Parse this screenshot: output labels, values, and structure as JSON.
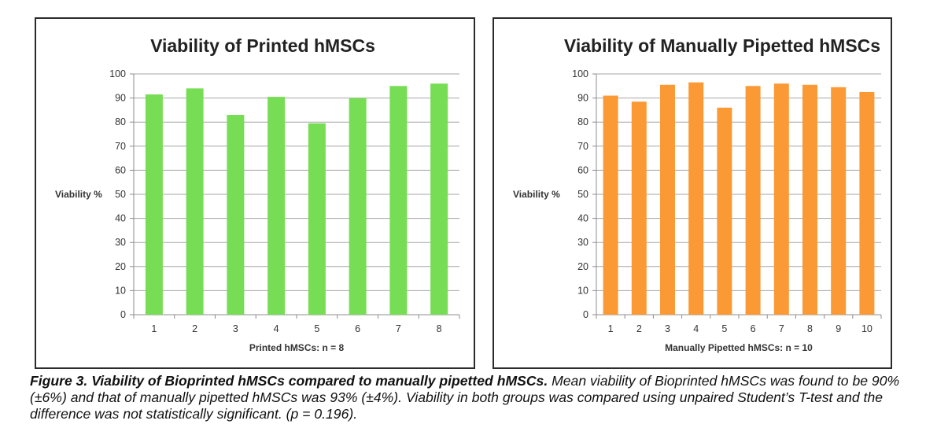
{
  "chart_data": [
    {
      "type": "bar",
      "title": "Viability of Printed hMSCs",
      "xlabel": "Printed hMSCs: n = 8",
      "ylabel": "Viability %",
      "ylim": [
        0,
        100
      ],
      "yticks": [
        "0",
        "10",
        "20",
        "30",
        "40",
        "50",
        "60",
        "70",
        "80",
        "90",
        "100"
      ],
      "categories": [
        "1",
        "2",
        "3",
        "4",
        "5",
        "6",
        "7",
        "8"
      ],
      "values": [
        91.5,
        94,
        83,
        90.5,
        79.5,
        90,
        95,
        96
      ],
      "color": "#77dd55",
      "grid": true,
      "legend": "none"
    },
    {
      "type": "bar",
      "title": "Viability of Manually Pipetted hMSCs",
      "xlabel": "Manually Pipetted hMSCs: n = 10",
      "ylabel": "Viability %",
      "ylim": [
        0,
        100
      ],
      "yticks": [
        "0",
        "10",
        "20",
        "30",
        "40",
        "50",
        "60",
        "70",
        "80",
        "90",
        "100"
      ],
      "categories": [
        "1",
        "2",
        "3",
        "4",
        "5",
        "6",
        "7",
        "8",
        "9",
        "10"
      ],
      "values": [
        91,
        88.5,
        95.5,
        96.5,
        86,
        95,
        96,
        95.5,
        94.5,
        92.5
      ],
      "color": "#fb9935",
      "grid": true,
      "legend": "none"
    }
  ],
  "caption": {
    "bold": "Figure 3. Viability of Bioprinted hMSCs compared to manually pipetted hMSCs.",
    "text": " Mean viability of Bioprinted hMSCs was found to be 90% (±6%) and that of manually pipetted hMSCs was 93% (±4%). Viability in both groups was compared using unpaired Student’s T-test and the difference was not statistically significant. (p = 0.196)."
  }
}
